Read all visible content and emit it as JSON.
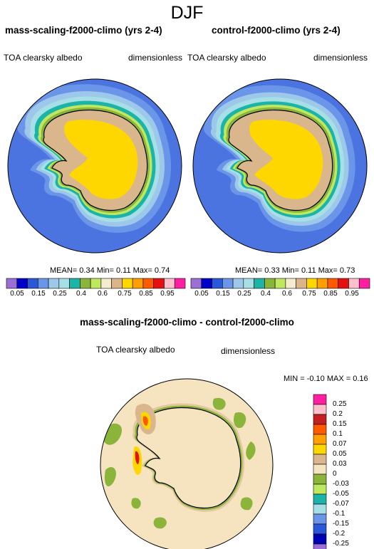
{
  "header": {
    "season": "DJF"
  },
  "colors": {
    "ocean": "#4b74e0",
    "land": "#d9b68c",
    "plateau": "#ffd700",
    "diff_bg": "#f6e3c0",
    "coast": "#000000"
  },
  "panels": [
    {
      "title": "mass-scaling-f2000-climo (yrs 2-4)",
      "variable": "TOA clearsky albedo",
      "units": "dimensionless",
      "mean_label": "MEAN=",
      "mean": "0.34",
      "min_label": "Min=",
      "min": "0.11",
      "max_label": "Max=",
      "max": "0.74"
    },
    {
      "title": "control-f2000-climo (yrs 2-4)",
      "variable": "TOA clearsky albedo",
      "units": "dimensionless",
      "mean_label": "MEAN=",
      "mean": "0.33",
      "min_label": "Min=",
      "min": "0.11",
      "max_label": "Max=",
      "max": "0.73"
    }
  ],
  "colorbar": {
    "labels": [
      "0.05",
      "0.15",
      "0.25",
      "0.4",
      "0.6",
      "0.75",
      "0.85",
      "0.95"
    ],
    "colors": [
      "#9b6fd6",
      "#0000c8",
      "#2a58d8",
      "#6a95e8",
      "#9ec8ea",
      "#a6e0e6",
      "#1cb3a8",
      "#8ab43a",
      "#bfe860",
      "#f5ecd0",
      "#ddb489",
      "#ffd700",
      "#ff9f00",
      "#ff5a00",
      "#e61010",
      "#ffc0cb",
      "#ff1fa0"
    ]
  },
  "diff": {
    "title": "mass-scaling-f2000-climo - control-f2000-climo",
    "variable": "TOA clearsky albedo",
    "units": "dimensionless",
    "min_label": "MIN =",
    "min": "-0.10",
    "max_label": "MAX =",
    "max": "0.16",
    "levels": [
      "0.25",
      "0.2",
      "0.15",
      "0.1",
      "0.07",
      "0.05",
      "0.03",
      "0",
      "-0.03",
      "-0.05",
      "-0.07",
      "-0.1",
      "-0.15",
      "-0.2",
      "-0.25"
    ],
    "colors": [
      "#ff1fa0",
      "#ffc0cb",
      "#c42020",
      "#ff5a00",
      "#ffa000",
      "#ffd700",
      "#d9b68c",
      "#f6e3c0",
      "#8ab43a",
      "#bfe860",
      "#1cb3a8",
      "#a6e0e6",
      "#6a95e8",
      "#2a58d8",
      "#0000b4",
      "#9b6fd6"
    ]
  }
}
